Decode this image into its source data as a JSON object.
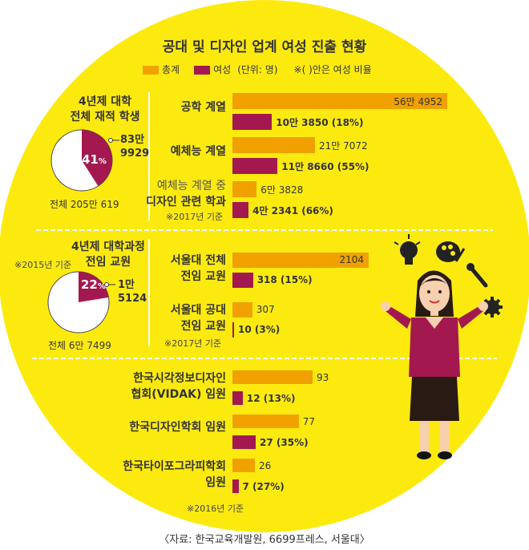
{
  "title": "공대 및 디자인 업계 여성 진출 현황",
  "legend": {
    "total": "총계",
    "female": "여성",
    "unit": "(단위: 명)",
    "note": "※( )안은 여성 비율"
  },
  "colors": {
    "background": "#fcea0f",
    "total": "#f0a100",
    "female": "#a3194f",
    "divider": "#ffffff"
  },
  "section1": {
    "title_line1": "4년제 대학",
    "title_line2": "전체 재적 학생",
    "pie_pct_label": "41",
    "pie_pct_unit": "%",
    "pie_female_line1": "83만",
    "pie_female_line2": "9929",
    "pie_total": "전체 205만 619",
    "note": "※2017년 기준"
  },
  "section2": {
    "note_left": "※2015년 기준",
    "title_line1": "4년제 대학과정",
    "title_line2": "전임 교원",
    "pie_pct_label": "22",
    "pie_pct_unit": "%",
    "pie_female_line1": "1만",
    "pie_female_line2": "5124",
    "pie_total": "전체 6만 7499",
    "note": "※2017년 기준"
  },
  "section3": {
    "note": "※2016년 기준"
  },
  "source": "〈자료: 한국교육개발원, 6699프레스, 서울대〉",
  "chart_data": [
    {
      "type": "pie",
      "title": "4년제 대학 전체 재적 학생",
      "total": 2050619,
      "female": 839929,
      "female_pct": 41
    },
    {
      "type": "bar",
      "series": [
        {
          "name": "총계",
          "values": [
            564952,
            217072,
            63828
          ]
        },
        {
          "name": "여성",
          "values": [
            103850,
            118660,
            42341
          ]
        }
      ],
      "rows": [
        {
          "label_lines": [
            "공학 계열"
          ],
          "total_label": "56만 4952",
          "female_label": "10만 3850 (18%)"
        },
        {
          "label_lines": [
            "예체능 계열"
          ],
          "total_label": "21만 7072",
          "female_label": "11만 8660 (55%)"
        },
        {
          "label_lines": [
            "예체능 계열 중",
            "디자인 관련 학과"
          ],
          "total_label": "6만 3828",
          "female_label": "4만 2341 (66%)"
        }
      ],
      "max": 564952
    },
    {
      "type": "pie",
      "title": "4년제 대학과정 전임 교원",
      "total": 67499,
      "female": 15124,
      "female_pct": 22
    },
    {
      "type": "bar",
      "series": [
        {
          "name": "총계",
          "values": [
            2104,
            307
          ]
        },
        {
          "name": "여성",
          "values": [
            318,
            10
          ]
        }
      ],
      "rows": [
        {
          "label_lines": [
            "서울대 전체",
            "전임 교원"
          ],
          "total_label": "2104",
          "female_label": "318 (15%)"
        },
        {
          "label_lines": [
            "서울대 공대",
            "전임 교원"
          ],
          "total_label": "307",
          "female_label": "10 (3%)"
        }
      ],
      "max": 2104
    },
    {
      "type": "bar",
      "series": [
        {
          "name": "총계",
          "values": [
            93,
            77,
            26
          ]
        },
        {
          "name": "여성",
          "values": [
            12,
            27,
            7
          ]
        }
      ],
      "rows": [
        {
          "label_lines": [
            "한국시각정보디자인",
            "협회(VIDAK) 임원"
          ],
          "total_label": "93",
          "female_label": "12 (13%)"
        },
        {
          "label_lines": [
            "한국디자인학회 임원"
          ],
          "total_label": "77",
          "female_label": "27 (35%)"
        },
        {
          "label_lines": [
            "한국타이포그라피학회",
            "임원"
          ],
          "total_label": "26",
          "female_label": "7 (27%)"
        }
      ],
      "max": 93
    }
  ]
}
